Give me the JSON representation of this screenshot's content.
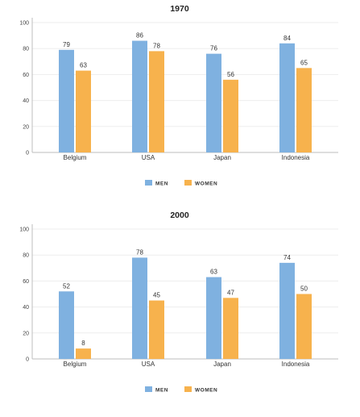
{
  "chart_data": [
    {
      "type": "bar",
      "title": "1970",
      "categories": [
        "Belgium",
        "USA",
        "Japan",
        "Indonesia"
      ],
      "series": [
        {
          "name": "MEN",
          "color": "#7fb1e0",
          "values": [
            79,
            86,
            76,
            84
          ]
        },
        {
          "name": "WOMEN",
          "color": "#f7b24d",
          "values": [
            63,
            78,
            56,
            65
          ]
        }
      ],
      "ylim": [
        0,
        100
      ],
      "yticks": [
        0,
        20,
        40,
        60,
        80,
        100
      ],
      "grid": true,
      "legend": "bottom-center"
    },
    {
      "type": "bar",
      "title": "2000",
      "categories": [
        "Belgium",
        "USA",
        "Japan",
        "Indonesia"
      ],
      "series": [
        {
          "name": "MEN",
          "color": "#7fb1e0",
          "values": [
            52,
            78,
            63,
            74
          ]
        },
        {
          "name": "WOMEN",
          "color": "#f7b24d",
          "values": [
            8,
            45,
            47,
            50
          ]
        }
      ],
      "ylim": [
        0,
        100
      ],
      "yticks": [
        0,
        20,
        40,
        60,
        80,
        100
      ],
      "grid": true,
      "legend": "bottom-center"
    }
  ]
}
